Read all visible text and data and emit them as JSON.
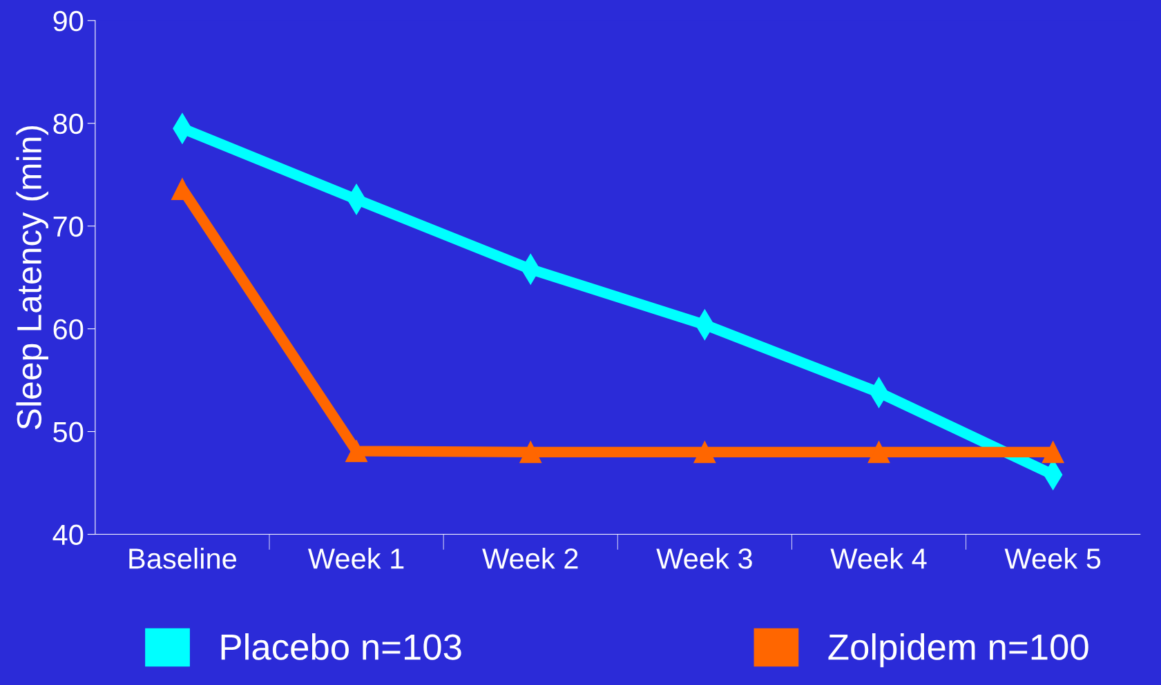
{
  "chart_data": {
    "type": "line",
    "ylabel": "Sleep Latency (min)",
    "categories": [
      "Baseline",
      "Week 1",
      "Week 2",
      "Week 3",
      "Week 4",
      "Week 5"
    ],
    "series": [
      {
        "name": "Placebo n=103",
        "color": "#00ffff",
        "marker": "diamond",
        "values": [
          79.5,
          72.6,
          65.8,
          60.4,
          53.8,
          45.8
        ]
      },
      {
        "name": "Zolpidem n=100",
        "color": "#ff6600",
        "marker": "triangle",
        "values": [
          73.6,
          48.1,
          48,
          48,
          48,
          48
        ]
      }
    ],
    "ylim": [
      40,
      90
    ],
    "yticks": [
      40,
      50,
      60,
      70,
      80,
      90
    ],
    "grid": false,
    "legend": "bottom",
    "line_style": "solid"
  }
}
